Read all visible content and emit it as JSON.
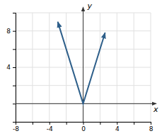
{
  "chart_data": {
    "type": "line",
    "x": [
      -3,
      0,
      2.6
    ],
    "values": [
      9,
      0,
      7.8
    ],
    "color": "#2e5f8a",
    "xlabel": "x",
    "ylabel": "y",
    "xlim": [
      -8,
      8
    ],
    "ylim": [
      -2,
      10
    ],
    "xticks": [
      -8,
      {
        "value": -6,
        "label": null
      },
      -4,
      {
        "value": -2,
        "label": null
      },
      0,
      {
        "value": 2,
        "label": null
      },
      4,
      {
        "value": 6,
        "label": null
      },
      8
    ],
    "yticks": [
      {
        "value": -2,
        "label": null
      },
      {
        "value": 0,
        "label": null
      },
      {
        "value": 2,
        "label": null
      },
      4,
      {
        "value": 6,
        "label": null
      },
      8,
      {
        "value": 10,
        "label": null
      }
    ],
    "grid": true
  }
}
